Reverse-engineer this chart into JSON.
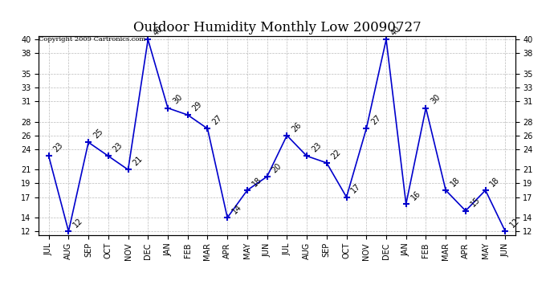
{
  "title": "Outdoor Humidity Monthly Low 20090727",
  "copyright": "Copyright 2009 Cartronics.com",
  "months": [
    "JUL",
    "AUG",
    "SEP",
    "OCT",
    "NOV",
    "DEC",
    "JAN",
    "FEB",
    "MAR",
    "APR",
    "MAY",
    "JUN",
    "JUL",
    "AUG",
    "SEP",
    "OCT",
    "NOV",
    "DEC",
    "JAN",
    "FEB",
    "MAR",
    "APR",
    "MAY",
    "JUN"
  ],
  "values": [
    23,
    12,
    25,
    23,
    21,
    40,
    30,
    29,
    27,
    14,
    18,
    20,
    26,
    23,
    22,
    17,
    27,
    40,
    16,
    30,
    18,
    15,
    18,
    12
  ],
  "ylim_min": 11.5,
  "ylim_max": 40.5,
  "yticks": [
    12,
    14,
    17,
    19,
    21,
    24,
    26,
    28,
    31,
    33,
    35,
    38,
    40
  ],
  "line_color": "#0000cc",
  "marker": "+",
  "marker_size": 6,
  "marker_color": "#0000cc",
  "grid_color": "#bbbbbb",
  "background_color": "#ffffff",
  "title_fontsize": 12,
  "tick_fontsize": 7,
  "annotation_fontsize": 7
}
